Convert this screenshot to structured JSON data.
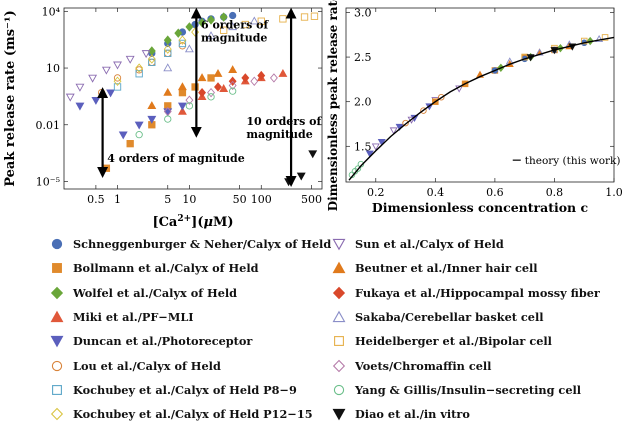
{
  "chart_data": [
    {
      "type": "scatter",
      "ylabel": "Peak release rate (ms⁻¹)",
      "xlabel_parts": [
        "[Ca",
        "2+",
        "](",
        "μ",
        "M)"
      ],
      "x_scale": "log",
      "y_scale": "log",
      "xlim": [
        0.18,
        700
      ],
      "ylim": [
        4e-06,
        15000
      ],
      "xticks": [
        0.5,
        1,
        5,
        10,
        50,
        100,
        500
      ],
      "xtick_labels": [
        "0.5",
        "1",
        "5",
        "10",
        "50",
        "100",
        "500"
      ],
      "yticks": [
        1e-05,
        0.01,
        10,
        10000
      ],
      "ytick_labels": [
        "10⁻⁵",
        "0.01",
        "10",
        "10⁴"
      ],
      "annotations": [
        {
          "text": "6 orders of magnitude",
          "arrow_x": 12.5,
          "from": 0.004,
          "to": 8000
        },
        {
          "text": "10 orders of magnitude",
          "arrow_x": 260,
          "from": 1e-05,
          "to": 8000
        },
        {
          "text": "4 orders of magnitude",
          "arrow_x": 0.62,
          "from": 3e-05,
          "to": 0.5
        }
      ],
      "series": [
        {
          "name": "Schneggenburger",
          "x": [
            3,
            5,
            8,
            12,
            15,
            20,
            30,
            40
          ],
          "y": [
            60,
            200,
            800,
            2000,
            3000,
            4000,
            5000,
            6000
          ]
        },
        {
          "name": "Bollmann",
          "x": [
            0.7,
            1.5,
            3,
            5,
            8,
            12,
            20
          ],
          "y": [
            5e-05,
            0.001,
            0.01,
            0.1,
            0.5,
            1,
            3
          ]
        },
        {
          "name": "Wolfel",
          "x": [
            3,
            5,
            7,
            10,
            15,
            20,
            30
          ],
          "y": [
            80,
            300,
            700,
            1500,
            2500,
            3500,
            5000
          ]
        },
        {
          "name": "Miki",
          "x": [
            8,
            15,
            30,
            60,
            100,
            200
          ],
          "y": [
            0.05,
            0.3,
            0.8,
            2,
            3,
            5
          ]
        },
        {
          "name": "Duncan",
          "x": [
            0.3,
            0.5,
            0.8,
            1.2,
            2,
            3,
            5,
            8
          ],
          "y": [
            0.1,
            0.2,
            0.5,
            0.003,
            0.01,
            0.02,
            0.05,
            0.1
          ]
        },
        {
          "name": "Lou",
          "x": [
            0.6,
            1,
            2,
            3,
            5,
            8
          ],
          "y": [
            0.5,
            3,
            8,
            20,
            60,
            150
          ]
        },
        {
          "name": "Kochubey P8-9",
          "x": [
            1,
            2,
            3,
            5,
            8
          ],
          "y": [
            1,
            5,
            20,
            60,
            200
          ]
        },
        {
          "name": "Kochubey P12-15",
          "x": [
            1,
            2,
            3,
            5,
            8,
            12
          ],
          "y": [
            2,
            10,
            30,
            100,
            300,
            800
          ]
        },
        {
          "name": "Sun",
          "x": [
            0.22,
            0.3,
            0.45,
            0.7,
            1,
            1.5,
            2.5
          ],
          "y": [
            0.3,
            1,
            3,
            8,
            15,
            30,
            60
          ]
        },
        {
          "name": "Beutner",
          "x": [
            3,
            5,
            8,
            15,
            25,
            40
          ],
          "y": [
            0.1,
            0.5,
            1,
            3,
            5,
            8
          ]
        },
        {
          "name": "Fukaya",
          "x": [
            15,
            25,
            40,
            60,
            100
          ],
          "y": [
            0.5,
            1,
            2,
            3,
            4
          ]
        },
        {
          "name": "Sakaba",
          "x": [
            5,
            10,
            20,
            40,
            80
          ],
          "y": [
            10,
            100,
            500,
            1500,
            3000
          ]
        },
        {
          "name": "Heidelberger",
          "x": [
            30,
            60,
            100,
            200,
            400,
            550
          ],
          "y": [
            1000,
            2000,
            3000,
            4000,
            5000,
            5500
          ]
        },
        {
          "name": "Voets",
          "x": [
            5,
            10,
            20,
            40,
            80,
            150
          ],
          "y": [
            0.05,
            0.2,
            0.5,
            1.2,
            2,
            3
          ]
        },
        {
          "name": "Yang & Gillis",
          "x": [
            2,
            5,
            10,
            20,
            40
          ],
          "y": [
            0.003,
            0.02,
            0.1,
            0.3,
            0.6
          ]
        },
        {
          "name": "Diao",
          "x": [
            240,
            360,
            520
          ],
          "y": [
            1e-05,
            2e-05,
            0.0003
          ]
        }
      ]
    },
    {
      "type": "scatter",
      "ylabel": "Dimensionless peak release rate r",
      "xlabel": "Dimensionless concentration c",
      "xlim": [
        0.1,
        1.0
      ],
      "ylim": [
        1.1,
        3.05
      ],
      "xticks": [
        0.2,
        0.4,
        0.6,
        0.8,
        1.0
      ],
      "xtick_labels": [
        "0.2",
        "0.4",
        "0.6",
        "0.8",
        "1.0"
      ],
      "yticks": [
        1.5,
        2.0,
        2.5,
        3.0
      ],
      "ytick_labels": [
        "1.5",
        "2.0",
        "2.5",
        "3.0"
      ],
      "legend": {
        "label": "theory (this work)",
        "position": "bottom-right"
      },
      "theory_curve": {
        "x": [
          0.11,
          0.15,
          0.2,
          0.25,
          0.3,
          0.35,
          0.4,
          0.45,
          0.5,
          0.55,
          0.6,
          0.65,
          0.7,
          0.75,
          0.8,
          0.85,
          0.9,
          0.95,
          1.0
        ],
        "y": [
          1.12,
          1.28,
          1.45,
          1.61,
          1.75,
          1.88,
          2.0,
          2.11,
          2.2,
          2.28,
          2.35,
          2.42,
          2.48,
          2.53,
          2.58,
          2.62,
          2.66,
          2.69,
          2.72
        ]
      },
      "series": [
        {
          "name": "Yang & Gillis",
          "x": [
            0.12,
            0.13,
            0.14,
            0.15
          ],
          "y": [
            1.18,
            1.22,
            1.25,
            1.3
          ]
        },
        {
          "name": "Duncan",
          "x": [
            0.18,
            0.22,
            0.28,
            0.33,
            0.38
          ],
          "y": [
            1.42,
            1.55,
            1.72,
            1.82,
            1.95
          ]
        },
        {
          "name": "Sun",
          "x": [
            0.2,
            0.26,
            0.32,
            0.4,
            0.48
          ],
          "y": [
            1.5,
            1.68,
            1.8,
            2.02,
            2.15
          ]
        },
        {
          "name": "Lou",
          "x": [
            0.3,
            0.36,
            0.42,
            0.5
          ],
          "y": [
            1.76,
            1.9,
            2.05,
            2.2
          ]
        },
        {
          "name": "Bollmann",
          "x": [
            0.4,
            0.5,
            0.6,
            0.7,
            0.8
          ],
          "y": [
            2.0,
            2.2,
            2.35,
            2.5,
            2.58
          ]
        },
        {
          "name": "Beutner",
          "x": [
            0.55,
            0.65,
            0.75,
            0.85
          ],
          "y": [
            2.3,
            2.42,
            2.55,
            2.62
          ]
        },
        {
          "name": "Schneggenburger",
          "x": [
            0.6,
            0.7,
            0.8,
            0.9
          ],
          "y": [
            2.35,
            2.48,
            2.58,
            2.66
          ]
        },
        {
          "name": "Wolfel",
          "x": [
            0.62,
            0.72,
            0.82,
            0.92
          ],
          "y": [
            2.38,
            2.5,
            2.6,
            2.68
          ]
        },
        {
          "name": "Heidelberger",
          "x": [
            0.7,
            0.8,
            0.9,
            0.97
          ],
          "y": [
            2.5,
            2.6,
            2.68,
            2.72
          ]
        },
        {
          "name": "Sakaba",
          "x": [
            0.65,
            0.75,
            0.85,
            0.95
          ],
          "y": [
            2.45,
            2.55,
            2.64,
            2.7
          ]
        },
        {
          "name": "Diao",
          "x": [
            0.72,
            0.8,
            0.86
          ],
          "y": [
            2.5,
            2.58,
            2.62
          ]
        }
      ]
    }
  ],
  "legend": {
    "items": [
      {
        "label": "Schneggenburger & Neher/Calyx of Held",
        "marker": "circle",
        "color": "#4a6fb5",
        "filled": true
      },
      {
        "label": "Sun et al./Calyx of Held",
        "marker": "triangle-down",
        "color": "#8a6bb0",
        "filled": false
      },
      {
        "label": "Bollmann et al./Calyx of Held",
        "marker": "square",
        "color": "#e08a2c",
        "filled": true
      },
      {
        "label": "Beutner et al./Inner hair cell",
        "marker": "triangle-up",
        "color": "#e07a1c",
        "filled": true
      },
      {
        "label": "Wolfel et al./Calyx of Held",
        "marker": "diamond",
        "color": "#6aa63a",
        "filled": true
      },
      {
        "label": "Fukaya et al./Hippocampal mossy fiber",
        "marker": "diamond",
        "color": "#d9482b",
        "filled": true
      },
      {
        "label": "Miki et al./PF−MLI",
        "marker": "triangle-up",
        "color": "#e0583a",
        "filled": true
      },
      {
        "label": "Sakaba/Cerebellar basket cell",
        "marker": "triangle-up",
        "color": "#8a8ec8",
        "filled": false
      },
      {
        "label": "Duncan et al./Photoreceptor",
        "marker": "triangle-down",
        "color": "#5b5fbd",
        "filled": true
      },
      {
        "label": "Heidelberger et al./Bipolar cell",
        "marker": "square",
        "color": "#e6b04a",
        "filled": false
      },
      {
        "label": "Lou et al./Calyx of Held",
        "marker": "circle",
        "color": "#d8833a",
        "filled": false
      },
      {
        "label": "Voets/Chromaffin cell",
        "marker": "diamond",
        "color": "#b57aa8",
        "filled": false
      },
      {
        "label": "Kochubey et al./Calyx of Held P8−9",
        "marker": "square",
        "color": "#5aa6c8",
        "filled": false
      },
      {
        "label": "Yang & Gillis/Insulin−secreting cell",
        "marker": "circle",
        "color": "#6bbf8a",
        "filled": false
      },
      {
        "label": "Kochubey et al./Calyx of Held P12−15",
        "marker": "diamond",
        "color": "#d9c440",
        "filled": false
      },
      {
        "label": "Diao et al./in vitro",
        "marker": "triangle-down",
        "color": "#111111",
        "filled": true
      }
    ]
  }
}
